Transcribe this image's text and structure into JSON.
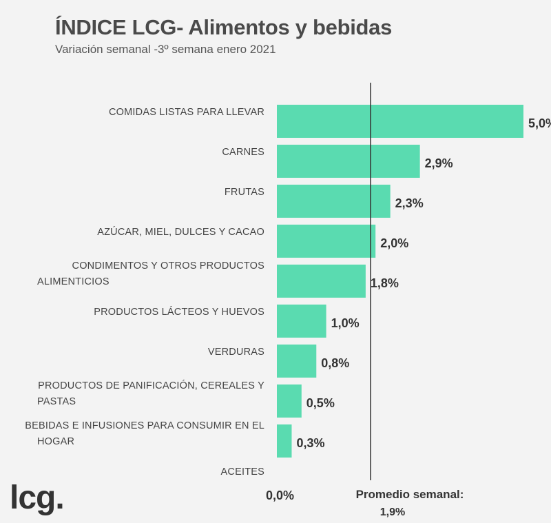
{
  "chart_data": {
    "type": "bar",
    "orientation": "horizontal",
    "title": "ÍNDICE LCG- Alimentos y bebidas",
    "subtitle": "Variación semanal -3º semana enero 2021",
    "categories": [
      [
        "COMIDAS LISTAS PARA LLEVAR"
      ],
      [
        "CARNES"
      ],
      [
        "FRUTAS"
      ],
      [
        "AZÚCAR, MIEL, DULCES Y CACAO"
      ],
      [
        "CONDIMENTOS Y OTROS PRODUCTOS",
        "ALIMENTICIOS"
      ],
      [
        "PRODUCTOS LÁCTEOS Y HUEVOS"
      ],
      [
        "VERDURAS"
      ],
      [
        "PRODUCTOS DE PANIFICACIÓN, CEREALES Y",
        "PASTAS"
      ],
      [
        "BEBIDAS E INFUSIONES PARA CONSUMIR EN EL",
        "HOGAR"
      ],
      [
        "ACEITES"
      ]
    ],
    "values": [
      5.0,
      2.9,
      2.3,
      2.0,
      1.8,
      1.0,
      0.8,
      0.5,
      0.3,
      0.0
    ],
    "value_labels": [
      "5,0%",
      "2,9%",
      "2,3%",
      "2,0%",
      "1,8%",
      "1,0%",
      "0,8%",
      "0,5%",
      "0,3%",
      "0,0%"
    ],
    "reference_line": {
      "value": 1.9,
      "label": "Promedio semanal:",
      "value_label": "1,9%"
    },
    "xlim": [
      0,
      5.0
    ],
    "grid": false,
    "bar_color": "#5adbb0",
    "line_color": "#333333"
  },
  "brand": {
    "logo_text": "lcg."
  }
}
